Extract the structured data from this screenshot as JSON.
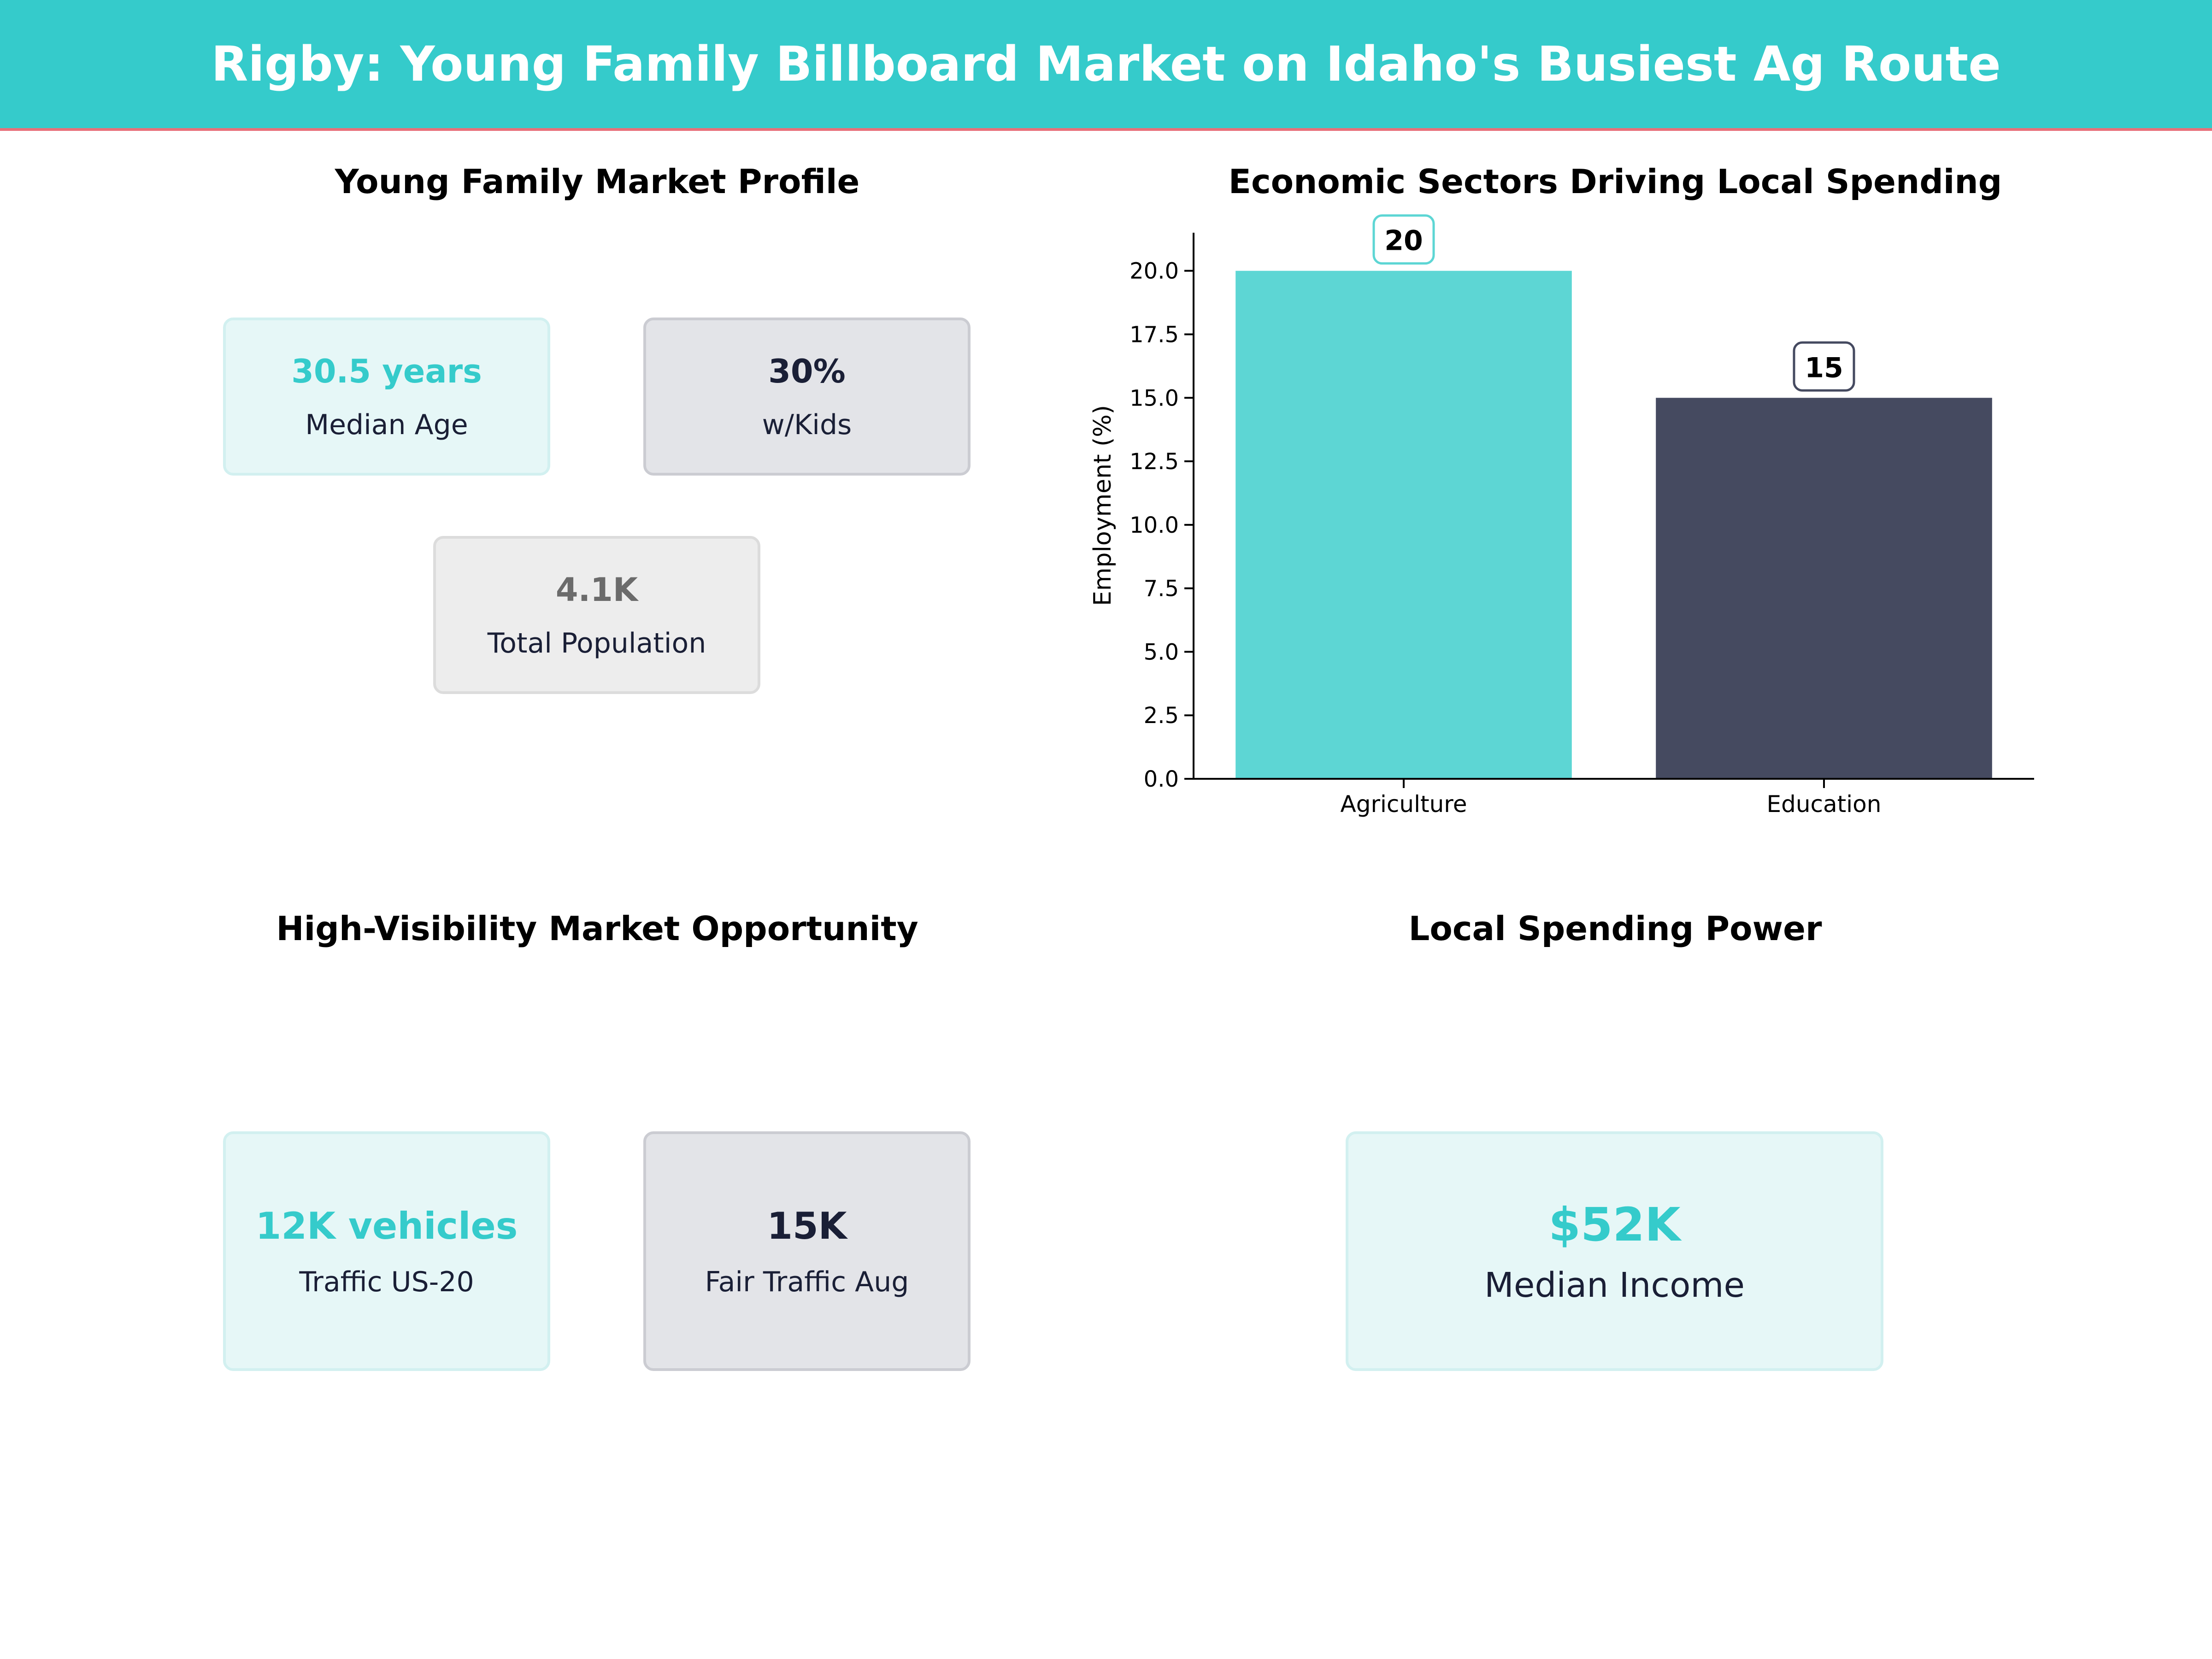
{
  "header": {
    "title": "Rigby: Young Family Billboard Market on Idaho's Busiest Ag Route"
  },
  "colors": {
    "accent": "#35CBCB",
    "dark": "#454A60",
    "header_border": "#E8707A"
  },
  "profile": {
    "title": "Young Family Market Profile",
    "cards": [
      {
        "value": "30.5 years",
        "label": "Median Age"
      },
      {
        "value": "30%",
        "label": "w/Kids"
      },
      {
        "value": "4.1K",
        "label": "Total Population"
      }
    ]
  },
  "opportunity": {
    "title": "High-Visibility Market Opportunity",
    "cards": [
      {
        "value": "12K vehicles",
        "label": "Traffic US-20"
      },
      {
        "value": "15K",
        "label": "Fair Traffic Aug"
      }
    ]
  },
  "spending": {
    "title": "Local Spending Power",
    "cards": [
      {
        "value": "$52K",
        "label": "Median Income"
      }
    ]
  },
  "chart_data": {
    "type": "bar",
    "title": "Economic Sectors Driving Local Spending",
    "categories": [
      "Agriculture",
      "Education"
    ],
    "values": [
      20,
      15
    ],
    "data_labels": [
      "20",
      "15"
    ],
    "colors": [
      "#5DD6D4",
      "#454A60"
    ],
    "xlabel": "",
    "ylabel": "Employment (%)",
    "ylim": [
      0,
      21.5
    ],
    "yticks": [
      "0.0",
      "2.5",
      "5.0",
      "7.5",
      "10.0",
      "12.5",
      "15.0",
      "17.5",
      "20.0"
    ],
    "grid": false
  }
}
